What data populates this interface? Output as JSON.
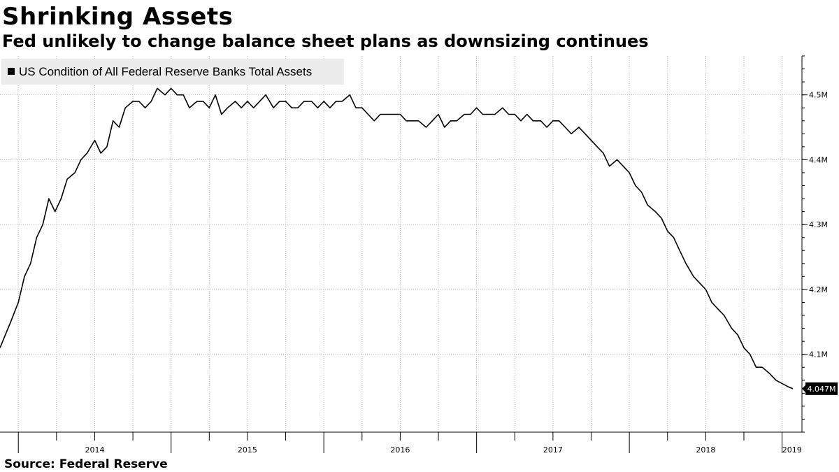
{
  "header": {
    "title": "Shrinking Assets",
    "subtitle": "Fed unlikely to change balance sheet plans as downsizing continues"
  },
  "footer": {
    "source": "Source:  Federal Reserve"
  },
  "chart_data": {
    "type": "line",
    "title": "Shrinking Assets",
    "subtitle": "Fed unlikely to change balance sheet plans as downsizing continues",
    "xlabel": "",
    "ylabel": "",
    "x_tick_labels": [
      "2014",
      "2015",
      "2016",
      "2017",
      "2018",
      "2019"
    ],
    "y_tick_labels": [
      "4.1M",
      "4.2M",
      "4.3M",
      "4.4M",
      "4.5M"
    ],
    "y_tick_values": [
      4.1,
      4.2,
      4.3,
      4.4,
      4.5
    ],
    "ylim": [
      3.98,
      4.56
    ],
    "xlim": [
      2013.88,
      2019.13
    ],
    "grid": true,
    "legend_position": "top-left",
    "y_axis_side": "right",
    "last_value_label": "4.047M",
    "colors": {
      "line": "#000000",
      "grid": "#b4b4b4",
      "last_label_bg": "#000000"
    },
    "series": [
      {
        "name": "US Condition of All Federal Reserve Banks Total Assets",
        "x": [
          2013.88,
          2013.95,
          2014.0,
          2014.04,
          2014.08,
          2014.12,
          2014.16,
          2014.2,
          2014.24,
          2014.28,
          2014.32,
          2014.37,
          2014.41,
          2014.45,
          2014.5,
          2014.54,
          2014.58,
          2014.62,
          2014.66,
          2014.7,
          2014.75,
          2014.79,
          2014.83,
          2014.87,
          2014.91,
          2014.96,
          2015.0,
          2015.04,
          2015.08,
          2015.12,
          2015.17,
          2015.21,
          2015.25,
          2015.29,
          2015.33,
          2015.37,
          2015.42,
          2015.46,
          2015.5,
          2015.54,
          2015.58,
          2015.62,
          2015.67,
          2015.71,
          2015.75,
          2015.79,
          2015.83,
          2015.87,
          2015.92,
          2015.96,
          2016.0,
          2016.04,
          2016.08,
          2016.12,
          2016.17,
          2016.21,
          2016.25,
          2016.29,
          2016.33,
          2016.37,
          2016.42,
          2016.46,
          2016.5,
          2016.54,
          2016.58,
          2016.62,
          2016.67,
          2016.71,
          2016.75,
          2016.79,
          2016.83,
          2016.87,
          2016.92,
          2016.96,
          2017.0,
          2017.04,
          2017.08,
          2017.12,
          2017.17,
          2017.21,
          2017.25,
          2017.29,
          2017.33,
          2017.37,
          2017.42,
          2017.46,
          2017.5,
          2017.54,
          2017.58,
          2017.62,
          2017.67,
          2017.71,
          2017.75,
          2017.79,
          2017.83,
          2017.87,
          2017.92,
          2017.96,
          2018.0,
          2018.04,
          2018.08,
          2018.12,
          2018.17,
          2018.21,
          2018.25,
          2018.29,
          2018.33,
          2018.37,
          2018.42,
          2018.46,
          2018.5,
          2018.54,
          2018.58,
          2018.62,
          2018.67,
          2018.71,
          2018.75,
          2018.79,
          2018.83,
          2018.87,
          2018.92,
          2018.96,
          2019.0,
          2019.04,
          2019.07
        ],
        "values": [
          4.11,
          4.15,
          4.18,
          4.22,
          4.24,
          4.28,
          4.3,
          4.34,
          4.32,
          4.34,
          4.37,
          4.38,
          4.4,
          4.41,
          4.43,
          4.41,
          4.42,
          4.46,
          4.45,
          4.48,
          4.49,
          4.49,
          4.48,
          4.49,
          4.51,
          4.5,
          4.51,
          4.5,
          4.5,
          4.48,
          4.49,
          4.49,
          4.48,
          4.5,
          4.47,
          4.48,
          4.49,
          4.48,
          4.49,
          4.48,
          4.49,
          4.5,
          4.48,
          4.49,
          4.49,
          4.48,
          4.48,
          4.49,
          4.49,
          4.48,
          4.49,
          4.48,
          4.49,
          4.49,
          4.5,
          4.48,
          4.48,
          4.47,
          4.46,
          4.47,
          4.47,
          4.47,
          4.47,
          4.46,
          4.46,
          4.46,
          4.45,
          4.46,
          4.47,
          4.45,
          4.46,
          4.46,
          4.47,
          4.47,
          4.48,
          4.47,
          4.47,
          4.47,
          4.48,
          4.47,
          4.47,
          4.46,
          4.47,
          4.46,
          4.46,
          4.45,
          4.46,
          4.46,
          4.45,
          4.44,
          4.45,
          4.44,
          4.43,
          4.42,
          4.41,
          4.39,
          4.4,
          4.39,
          4.38,
          4.36,
          4.35,
          4.33,
          4.32,
          4.31,
          4.29,
          4.28,
          4.26,
          4.24,
          4.22,
          4.21,
          4.2,
          4.18,
          4.17,
          4.16,
          4.14,
          4.13,
          4.11,
          4.1,
          4.08,
          4.08,
          4.07,
          4.06,
          4.055,
          4.05,
          4.047
        ]
      }
    ]
  }
}
